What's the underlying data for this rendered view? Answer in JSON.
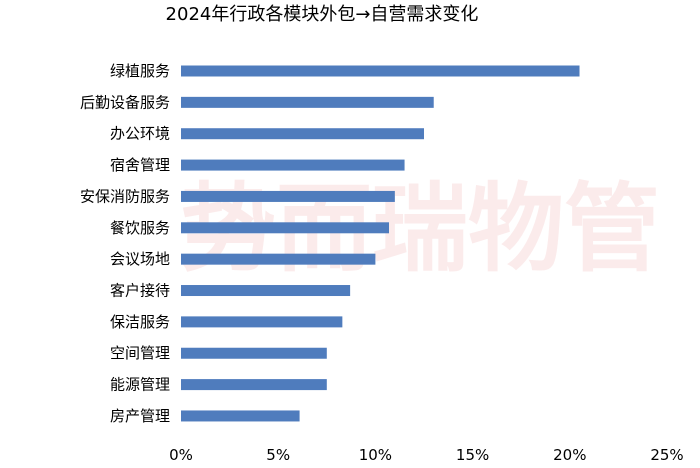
{
  "chart_data": {
    "type": "bar",
    "orientation": "horizontal",
    "title": "2024年行政各模块外包→自营需求变化",
    "categories": [
      "绿植服务",
      "后勤设备服务",
      "办公环境",
      "宿舍管理",
      "安保消防服务",
      "餐饮服务",
      "会议场地",
      "客户接待",
      "保洁服务",
      "空间管理",
      "能源管理",
      "房产管理"
    ],
    "values": [
      20.5,
      13.0,
      12.5,
      11.5,
      11.0,
      10.7,
      10.0,
      8.7,
      8.3,
      7.5,
      7.5,
      6.1
    ],
    "xlim": [
      0,
      25
    ],
    "xticks": [
      "0%",
      "5%",
      "10%",
      "15%",
      "20%",
      "25%"
    ],
    "xtick_values": [
      0,
      5,
      10,
      15,
      20,
      25
    ],
    "bar_color": "#4f7cbd",
    "grid": false,
    "legend": "none"
  },
  "watermark": "势而瑞物管"
}
